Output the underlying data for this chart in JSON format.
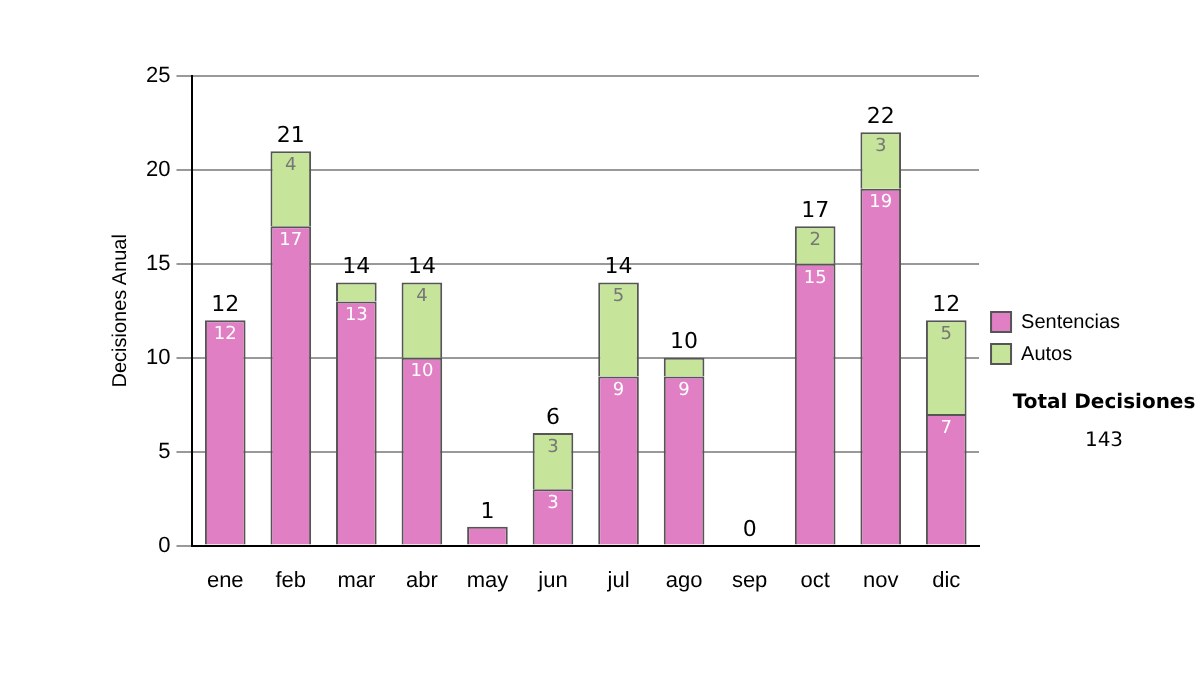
{
  "chart_data": {
    "type": "bar",
    "stacked": true,
    "ylabel": "Decisiones Anual",
    "categories": [
      "ene",
      "feb",
      "mar",
      "abr",
      "may",
      "jun",
      "jul",
      "ago",
      "sep",
      "oct",
      "nov",
      "dic"
    ],
    "series": [
      {
        "name": "Sentencias",
        "color": "#e07fc4",
        "values": [
          12,
          17,
          13,
          10,
          1,
          3,
          9,
          9,
          0,
          15,
          19,
          7
        ],
        "value_labels": [
          "12",
          "17",
          "13",
          "10",
          null,
          "3",
          "9",
          "9",
          null,
          "15",
          "19",
          "7"
        ]
      },
      {
        "name": "Autos",
        "color": "#c6e49a",
        "values": [
          0,
          4,
          1,
          4,
          0,
          3,
          5,
          1,
          0,
          2,
          3,
          5
        ],
        "value_labels": [
          null,
          "4",
          null,
          "4",
          null,
          "3",
          "5",
          null,
          null,
          "2",
          "3",
          "5"
        ]
      }
    ],
    "totals": [
      "12",
      "21",
      "14",
      "14",
      "1",
      "6",
      "14",
      "10",
      "0",
      "17",
      "22",
      "12"
    ],
    "ylim": [
      0,
      25
    ],
    "yticks": [
      0,
      5,
      10,
      15,
      20,
      25
    ],
    "grid": "y",
    "legend": "right",
    "annotations": [
      "Total Decisiones",
      "143"
    ]
  }
}
